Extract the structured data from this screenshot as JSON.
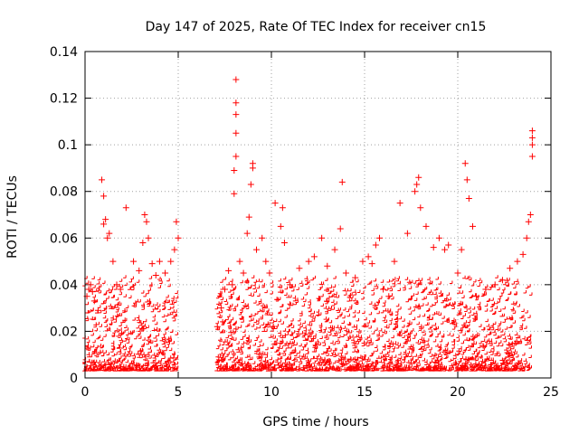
{
  "chart_data": {
    "type": "scatter",
    "title": "Day 147 of 2025, Rate Of TEC Index for receiver cn15",
    "xlabel": "GPS time / hours",
    "ylabel": "ROTI / TECUs",
    "xlim": [
      0,
      25
    ],
    "ylim": [
      0,
      0.14
    ],
    "xticks": [
      0,
      5,
      10,
      15,
      20,
      25
    ],
    "xtick_labels": [
      "0",
      "5",
      "10",
      "15",
      "20",
      "25"
    ],
    "yticks": [
      0,
      0.02,
      0.04,
      0.06,
      0.08,
      0.1,
      0.12,
      0.14
    ],
    "ytick_labels": [
      "0",
      "0.02",
      "0.04",
      "0.06",
      "0.08",
      "0.1",
      "0.12",
      "0.14"
    ],
    "grid": true,
    "marker": "plus",
    "color": "#ff0000",
    "series": [
      {
        "name": "ROTI",
        "points": [
          [
            0.1,
            0.035
          ],
          [
            0.2,
            0.038
          ],
          [
            0.3,
            0.04
          ],
          [
            0.4,
            0.037
          ],
          [
            0.5,
            0.033
          ],
          [
            0.7,
            0.029
          ],
          [
            0.9,
            0.085
          ],
          [
            1.0,
            0.078
          ],
          [
            1.0,
            0.066
          ],
          [
            1.1,
            0.068
          ],
          [
            1.2,
            0.06
          ],
          [
            1.3,
            0.062
          ],
          [
            1.5,
            0.05
          ],
          [
            1.7,
            0.04
          ],
          [
            1.9,
            0.038
          ],
          [
            2.2,
            0.073
          ],
          [
            2.6,
            0.05
          ],
          [
            2.9,
            0.046
          ],
          [
            3.1,
            0.058
          ],
          [
            3.2,
            0.07
          ],
          [
            3.3,
            0.067
          ],
          [
            3.4,
            0.06
          ],
          [
            3.6,
            0.049
          ],
          [
            3.8,
            0.044
          ],
          [
            4.0,
            0.05
          ],
          [
            4.3,
            0.045
          ],
          [
            4.6,
            0.05
          ],
          [
            4.8,
            0.055
          ],
          [
            4.9,
            0.067
          ],
          [
            5.0,
            0.06
          ],
          [
            7.1,
            0.022
          ],
          [
            7.3,
            0.03
          ],
          [
            7.5,
            0.038
          ],
          [
            7.7,
            0.046
          ],
          [
            7.9,
            0.04
          ],
          [
            8.0,
            0.079
          ],
          [
            8.0,
            0.089
          ],
          [
            8.1,
            0.095
          ],
          [
            8.1,
            0.105
          ],
          [
            8.1,
            0.113
          ],
          [
            8.1,
            0.118
          ],
          [
            8.1,
            0.128
          ],
          [
            8.3,
            0.05
          ],
          [
            8.5,
            0.045
          ],
          [
            8.7,
            0.062
          ],
          [
            8.8,
            0.069
          ],
          [
            8.9,
            0.083
          ],
          [
            9.0,
            0.09
          ],
          [
            9.0,
            0.092
          ],
          [
            9.2,
            0.055
          ],
          [
            9.5,
            0.06
          ],
          [
            9.7,
            0.05
          ],
          [
            9.9,
            0.045
          ],
          [
            10.2,
            0.075
          ],
          [
            10.5,
            0.065
          ],
          [
            10.6,
            0.073
          ],
          [
            10.7,
            0.058
          ],
          [
            11.0,
            0.04
          ],
          [
            11.5,
            0.047
          ],
          [
            12.0,
            0.05
          ],
          [
            12.3,
            0.052
          ],
          [
            12.7,
            0.06
          ],
          [
            13.0,
            0.048
          ],
          [
            13.4,
            0.055
          ],
          [
            13.7,
            0.064
          ],
          [
            13.8,
            0.084
          ],
          [
            14.0,
            0.045
          ],
          [
            14.5,
            0.043
          ],
          [
            14.9,
            0.05
          ],
          [
            15.2,
            0.052
          ],
          [
            15.4,
            0.049
          ],
          [
            15.6,
            0.057
          ],
          [
            15.8,
            0.06
          ],
          [
            16.0,
            0.038
          ],
          [
            16.3,
            0.035
          ],
          [
            16.6,
            0.05
          ],
          [
            16.9,
            0.075
          ],
          [
            17.3,
            0.062
          ],
          [
            17.7,
            0.08
          ],
          [
            17.8,
            0.083
          ],
          [
            17.9,
            0.086
          ],
          [
            18.0,
            0.073
          ],
          [
            18.3,
            0.065
          ],
          [
            18.7,
            0.056
          ],
          [
            19.0,
            0.06
          ],
          [
            19.3,
            0.055
          ],
          [
            19.5,
            0.057
          ],
          [
            20.0,
            0.045
          ],
          [
            20.2,
            0.055
          ],
          [
            20.4,
            0.092
          ],
          [
            20.5,
            0.085
          ],
          [
            20.6,
            0.077
          ],
          [
            20.8,
            0.065
          ],
          [
            21.0,
            0.035
          ],
          [
            21.5,
            0.038
          ],
          [
            22.0,
            0.04
          ],
          [
            22.4,
            0.042
          ],
          [
            22.8,
            0.047
          ],
          [
            23.2,
            0.05
          ],
          [
            23.5,
            0.053
          ],
          [
            23.7,
            0.06
          ],
          [
            23.8,
            0.067
          ],
          [
            23.9,
            0.07
          ],
          [
            24.0,
            0.095
          ],
          [
            24.0,
            0.1
          ],
          [
            24.0,
            0.103
          ],
          [
            24.0,
            0.106
          ]
        ]
      }
    ]
  }
}
